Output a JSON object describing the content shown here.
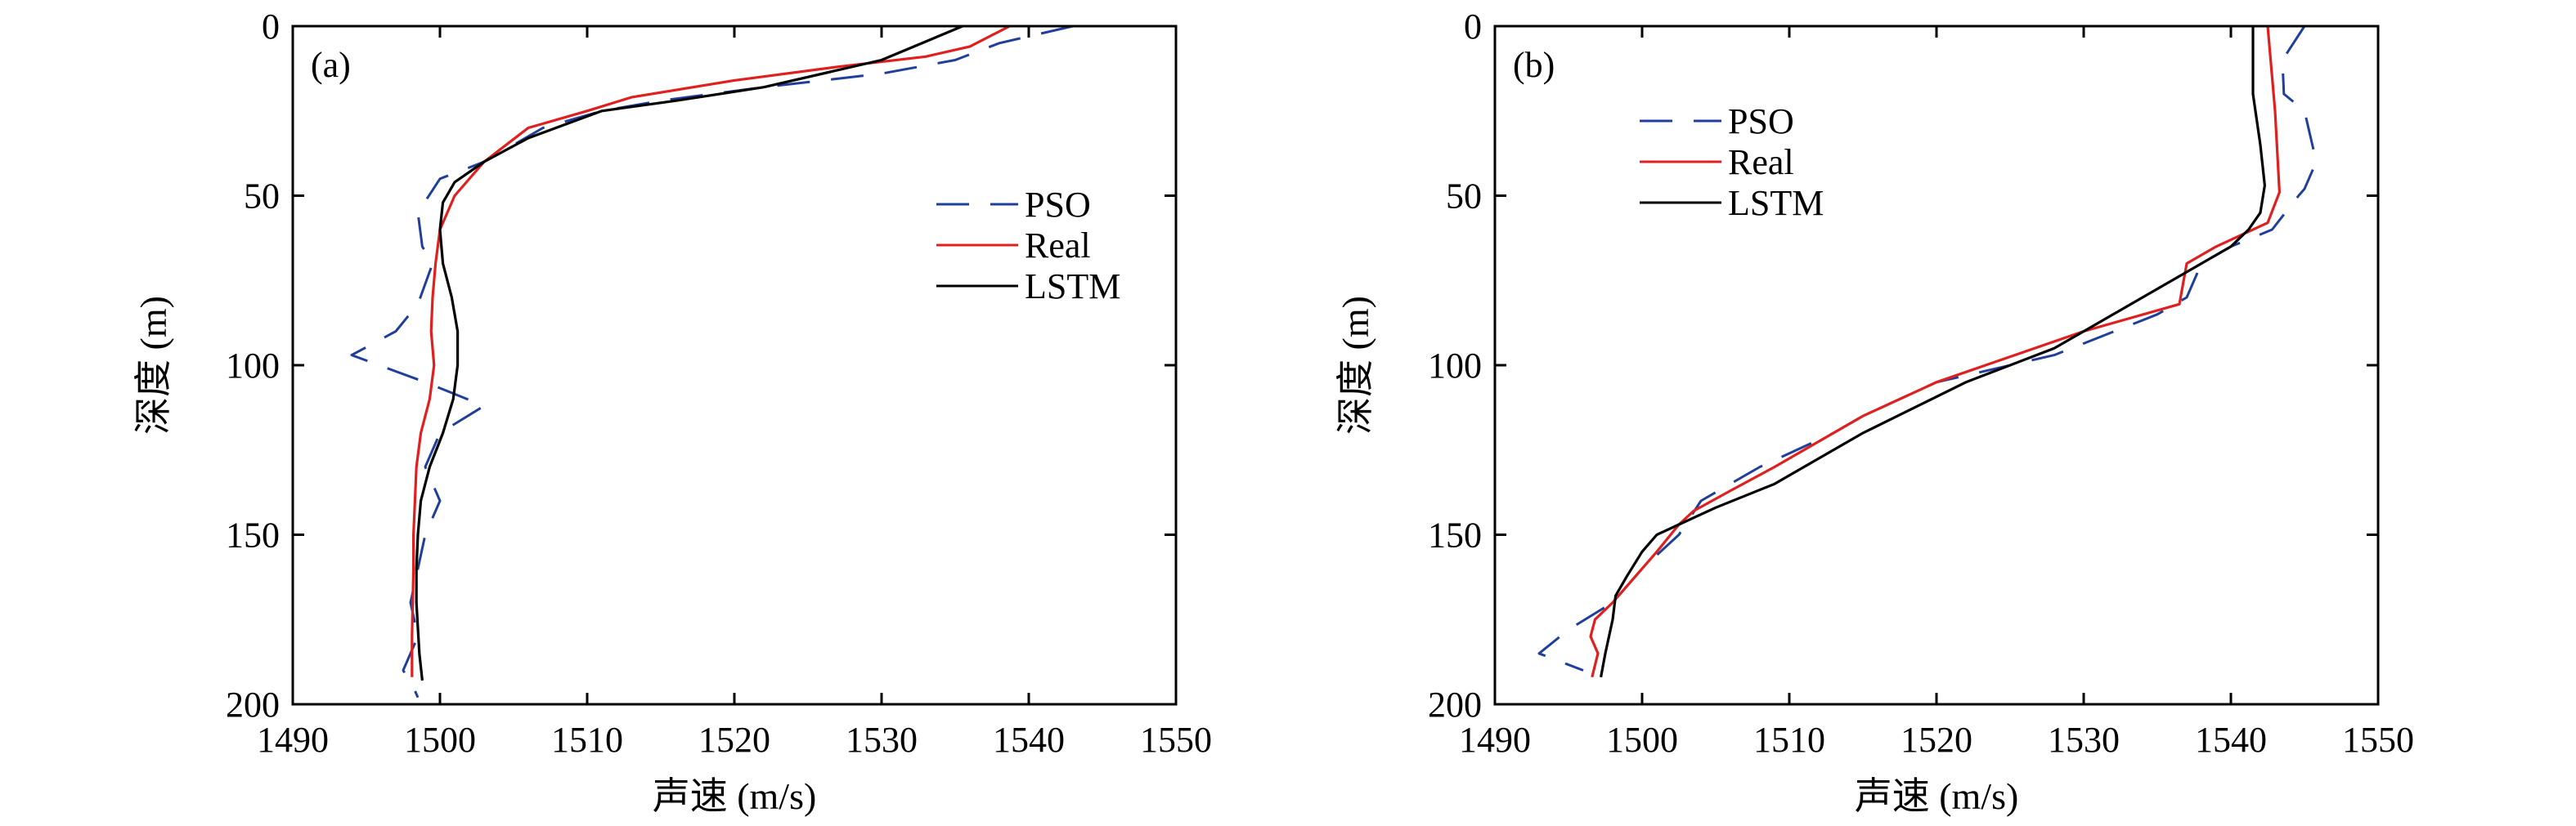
{
  "chart_data": [
    {
      "type": "line",
      "panel_label": "(a)",
      "xlabel": "声速 (m/s)",
      "ylabel": "深度 (m)",
      "xlim": [
        1490,
        1550
      ],
      "ylim": [
        0,
        200
      ],
      "y_inverted": true,
      "x_ticks": [
        1490,
        1500,
        1510,
        1520,
        1530,
        1540,
        1550
      ],
      "y_ticks": [
        0,
        50,
        100,
        150,
        200
      ],
      "legend_position": "right",
      "series": [
        {
          "name": "PSO",
          "color": "#1f3f9a",
          "style": "dashed",
          "x": [
            1543,
            1538,
            1535,
            1530,
            1522,
            1515,
            1511,
            1507,
            1505,
            1503,
            1500,
            1498.5,
            1498.8,
            1499.5,
            1498.5,
            1497,
            1494,
            1499,
            1503,
            1500,
            1499,
            1500,
            1499,
            1498.5,
            1498,
            1498.5,
            1497.5,
            1498.2,
            1498.5
          ],
          "y": [
            0,
            5,
            10,
            14,
            18,
            22,
            25,
            30,
            35,
            40,
            45,
            55,
            65,
            70,
            82,
            90,
            97,
            105,
            112,
            120,
            130,
            140,
            150,
            160,
            170,
            180,
            190,
            195,
            198
          ]
        },
        {
          "name": "Real",
          "color": "#e0201e",
          "style": "solid",
          "x": [
            1538.7,
            1536,
            1533,
            1527,
            1520,
            1513,
            1510,
            1506,
            1503,
            1501,
            1500,
            1499.7,
            1499.5,
            1499.4,
            1499.6,
            1499.3,
            1498.7,
            1498.4,
            1498.3,
            1498.2,
            1498.2,
            1498.1,
            1498.1
          ],
          "y": [
            0,
            6,
            9,
            12,
            16,
            21,
            25,
            30,
            40,
            50,
            60,
            70,
            80,
            90,
            100,
            110,
            120,
            130,
            140,
            150,
            160,
            180,
            192
          ]
        },
        {
          "name": "LSTM",
          "color": "#000000",
          "style": "solid",
          "x": [
            1535.5,
            1530,
            1522,
            1516,
            1511,
            1506,
            1503,
            1501,
            1500.2,
            1500,
            1500.2,
            1500.8,
            1501.2,
            1501.2,
            1500.9,
            1500.2,
            1499.3,
            1498.7,
            1498.5,
            1498.4,
            1498.4,
            1498.6,
            1498.8
          ],
          "y": [
            0,
            10,
            18,
            22,
            25,
            33,
            40,
            46,
            52,
            60,
            70,
            80,
            90,
            100,
            110,
            120,
            130,
            140,
            150,
            160,
            170,
            185,
            193
          ]
        }
      ]
    },
    {
      "type": "line",
      "panel_label": "(b)",
      "xlabel": "声速 (m/s)",
      "ylabel": "深度 (m)",
      "xlim": [
        1490,
        1550
      ],
      "ylim": [
        0,
        200
      ],
      "y_inverted": true,
      "x_ticks": [
        1490,
        1500,
        1510,
        1520,
        1530,
        1540,
        1550
      ],
      "y_ticks": [
        0,
        50,
        100,
        150,
        200
      ],
      "legend_position": "top-left",
      "series": [
        {
          "name": "PSO",
          "color": "#1f3f9a",
          "style": "dashed",
          "x": [
            1545,
            1543.5,
            1543.6,
            1545,
            1545.8,
            1545,
            1544.6,
            1542.8,
            1540,
            1538,
            1537,
            1535,
            1528,
            1520,
            1515,
            1513,
            1508,
            1504,
            1502.5,
            1500,
            1498,
            1495,
            1493,
            1496
          ],
          "y": [
            0,
            10,
            20,
            25,
            40,
            48,
            50,
            60,
            65,
            70,
            80,
            85,
            97,
            105,
            115,
            120,
            130,
            140,
            150,
            160,
            170,
            178,
            185,
            190
          ]
        },
        {
          "name": "Real",
          "color": "#e0201e",
          "style": "solid",
          "x": [
            1542.5,
            1542.7,
            1543,
            1543.3,
            1542.5,
            1540.5,
            1539,
            1537,
            1536.5,
            1530,
            1520,
            1515,
            1509,
            1506,
            1503.5,
            1502.5,
            1501,
            1498,
            1496.8,
            1496.5,
            1497,
            1496.6
          ],
          "y": [
            0,
            10,
            25,
            49,
            58,
            62,
            65,
            70,
            82,
            90,
            105,
            115,
            130,
            137,
            143,
            147,
            155,
            170,
            175,
            180,
            185,
            192
          ]
        },
        {
          "name": "LSTM",
          "color": "#000000",
          "style": "solid",
          "x": [
            1541.5,
            1541.5,
            1542,
            1542.3,
            1542,
            1541.2,
            1540,
            1538,
            1536,
            1534,
            1532,
            1528,
            1522,
            1515,
            1509,
            1505,
            1502.5,
            1501,
            1500,
            1499,
            1498.2,
            1498,
            1497.5,
            1497.2
          ],
          "y": [
            0,
            20,
            35,
            47,
            55,
            60,
            65,
            70,
            75,
            80,
            85,
            95,
            105,
            120,
            135,
            142,
            147,
            150,
            155,
            162,
            168,
            175,
            185,
            192
          ]
        }
      ]
    }
  ]
}
